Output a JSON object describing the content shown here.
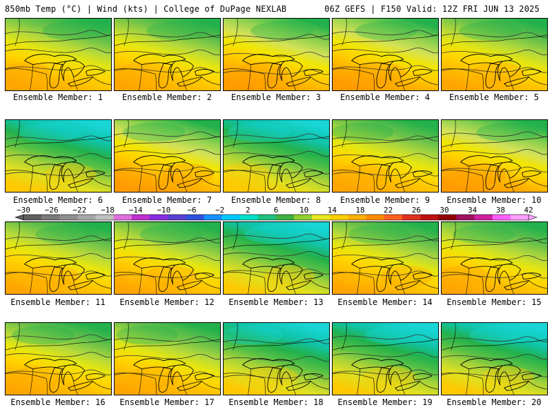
{
  "header": {
    "left": "850mb Temp (°C) | Wind (kts) | College of DuPage NEXLAB",
    "right": "06Z GEFS | F150 Valid: 12Z FRI JUN 13 2025"
  },
  "caption_prefix": "Ensemble Member: ",
  "members": [
    {
      "id": "1",
      "palette": "warm"
    },
    {
      "id": "2",
      "palette": "warm"
    },
    {
      "id": "3",
      "palette": "hot"
    },
    {
      "id": "4",
      "palette": "hot"
    },
    {
      "id": "5",
      "palette": "warm"
    },
    {
      "id": "6",
      "palette": "cool"
    },
    {
      "id": "7",
      "palette": "hot"
    },
    {
      "id": "8",
      "palette": "cool"
    },
    {
      "id": "9",
      "palette": "warm"
    },
    {
      "id": "10",
      "palette": "hot"
    },
    {
      "id": "11",
      "palette": "warm"
    },
    {
      "id": "12",
      "palette": "warm"
    },
    {
      "id": "13",
      "palette": "cool"
    },
    {
      "id": "14",
      "palette": "warm"
    },
    {
      "id": "15",
      "palette": "warm"
    },
    {
      "id": "16",
      "palette": "warm"
    },
    {
      "id": "17",
      "palette": "warm"
    },
    {
      "id": "18",
      "palette": "cool"
    },
    {
      "id": "19",
      "palette": "cool"
    },
    {
      "id": "20",
      "palette": "cool"
    }
  ],
  "colorbar": {
    "labels": [
      "−30",
      "−26",
      "−22",
      "−18",
      "−14",
      "−10",
      "−6",
      "−2",
      "2",
      "6",
      "10",
      "14",
      "18",
      "22",
      "26",
      "30",
      "34",
      "38",
      "42"
    ],
    "colors": [
      "#606060",
      "#7a7a7a",
      "#8f8f8f",
      "#a8a8a8",
      "#c0c0c0",
      "#e070e0",
      "#c030d0",
      "#8a2be2",
      "#5a3fd0",
      "#3050e0",
      "#1890ff",
      "#00c8ff",
      "#00e0c8",
      "#20c080",
      "#40b040",
      "#90d030",
      "#e8e820",
      "#ffd000",
      "#ffb000",
      "#ff8c00",
      "#ff6020",
      "#e03020",
      "#c01010",
      "#900000",
      "#a01060",
      "#d020a0",
      "#ff60ff",
      "#ffa0ff"
    ]
  },
  "palettes": {
    "hot": [
      "#22b14c",
      "#8fd14f",
      "#d4e157",
      "#f2e600",
      "#ffd000",
      "#ffb000",
      "#ff9a00"
    ],
    "warm": [
      "#22b14c",
      "#6cc24a",
      "#b5d93b",
      "#e6e60f",
      "#ffd700",
      "#ffbe00",
      "#ffa500"
    ],
    "cool": [
      "#18d6d6",
      "#10c4a8",
      "#22b14c",
      "#55c046",
      "#a6d23a",
      "#e0e020",
      "#ffc800"
    ]
  }
}
